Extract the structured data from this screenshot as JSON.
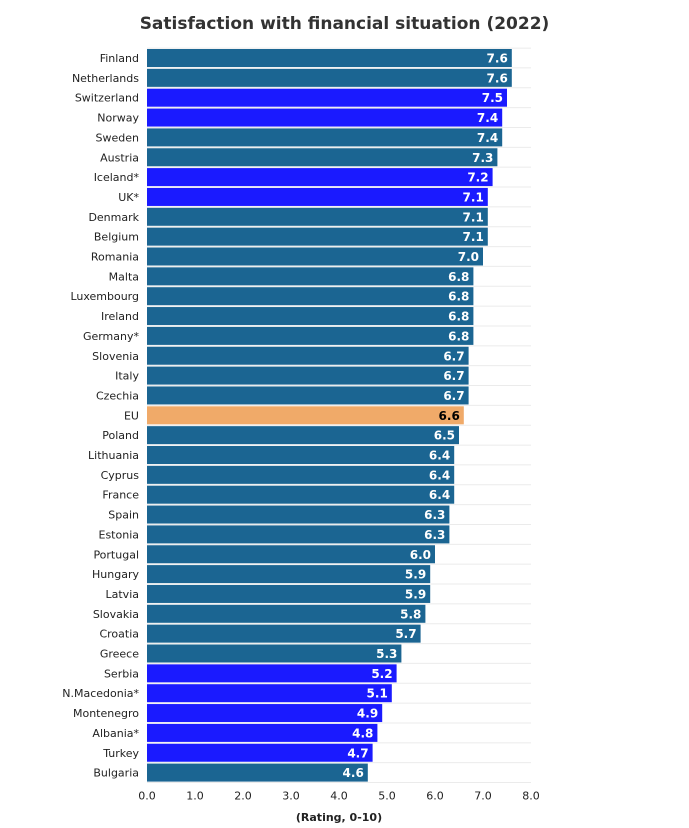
{
  "chart_data": {
    "type": "bar",
    "orientation": "horizontal",
    "title": "Satisfaction with financial situation (2022)",
    "xlabel": "(Rating, 0-10)",
    "ylabel": "",
    "xlim": [
      0,
      8
    ],
    "ticks": [
      "0.0",
      "1.0",
      "2.0",
      "3.0",
      "4.0",
      "5.0",
      "6.0",
      "7.0",
      "8.0"
    ],
    "grid": true,
    "colors": {
      "eu_member": "#1b6592",
      "non_eu": "#1a1aff",
      "eu_average": "#f0aa69",
      "label_default": "#ffffff",
      "label_eu": "#000000"
    },
    "categories": [
      "Finland",
      "Netherlands",
      "Switzerland",
      "Norway",
      "Sweden",
      "Austria",
      "Iceland*",
      "UK*",
      "Denmark",
      "Belgium",
      "Romania",
      "Malta",
      "Luxembourg",
      "Ireland",
      "Germany*",
      "Slovenia",
      "Italy",
      "Czechia",
      "EU",
      "Poland",
      "Lithuania",
      "Cyprus",
      "France",
      "Spain",
      "Estonia",
      "Portugal",
      "Hungary",
      "Latvia",
      "Slovakia",
      "Croatia",
      "Greece",
      "Serbia",
      "N.Macedonia*",
      "Montenegro",
      "Albania*",
      "Turkey",
      "Bulgaria"
    ],
    "values": [
      7.6,
      7.6,
      7.5,
      7.4,
      7.4,
      7.3,
      7.2,
      7.1,
      7.1,
      7.1,
      7.0,
      6.8,
      6.8,
      6.8,
      6.8,
      6.7,
      6.7,
      6.7,
      6.6,
      6.5,
      6.4,
      6.4,
      6.4,
      6.3,
      6.3,
      6.0,
      5.9,
      5.9,
      5.8,
      5.7,
      5.3,
      5.2,
      5.1,
      4.9,
      4.8,
      4.7,
      4.6
    ],
    "value_labels": [
      "7.6",
      "7.6",
      "7.5",
      "7.4",
      "7.4",
      "7.3",
      "7.2",
      "7.1",
      "7.1",
      "7.1",
      "7.0",
      "6.8",
      "6.8",
      "6.8",
      "6.8",
      "6.7",
      "6.7",
      "6.7",
      "6.6",
      "6.5",
      "6.4",
      "6.4",
      "6.4",
      "6.3",
      "6.3",
      "6.0",
      "5.9",
      "5.9",
      "5.8",
      "5.7",
      "5.3",
      "5.2",
      "5.1",
      "4.9",
      "4.8",
      "4.7",
      "4.6"
    ],
    "groups": [
      "eu_member",
      "eu_member",
      "non_eu",
      "non_eu",
      "eu_member",
      "eu_member",
      "non_eu",
      "non_eu",
      "eu_member",
      "eu_member",
      "eu_member",
      "eu_member",
      "eu_member",
      "eu_member",
      "eu_member",
      "eu_member",
      "eu_member",
      "eu_member",
      "eu_average",
      "eu_member",
      "eu_member",
      "eu_member",
      "eu_member",
      "eu_member",
      "eu_member",
      "eu_member",
      "eu_member",
      "eu_member",
      "eu_member",
      "eu_member",
      "eu_member",
      "non_eu",
      "non_eu",
      "non_eu",
      "non_eu",
      "non_eu",
      "eu_member"
    ]
  }
}
